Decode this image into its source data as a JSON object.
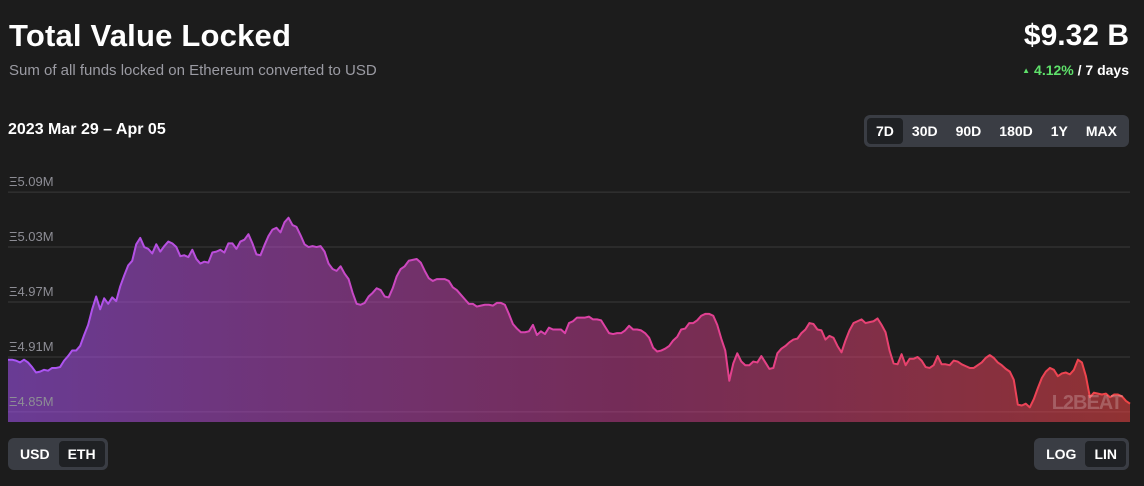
{
  "header": {
    "title": "Total Value Locked",
    "subtitle": "Sum of all funds locked on Ethereum converted to USD",
    "value": "$9.32 B",
    "change_pct": "4.12%",
    "change_period": "/ 7 days",
    "change_direction": "up"
  },
  "date_range": "2023 Mar 29 – Apr 05",
  "range_buttons": [
    {
      "label": "7D",
      "active": true
    },
    {
      "label": "30D",
      "active": false
    },
    {
      "label": "90D",
      "active": false
    },
    {
      "label": "180D",
      "active": false
    },
    {
      "label": "1Y",
      "active": false
    },
    {
      "label": "MAX",
      "active": false
    }
  ],
  "unit_buttons": [
    {
      "label": "USD",
      "active": false
    },
    {
      "label": "ETH",
      "active": true
    }
  ],
  "scale_buttons": [
    {
      "label": "LOG",
      "active": false
    },
    {
      "label": "LIN",
      "active": true
    }
  ],
  "watermark": "L2BEAT",
  "colors": {
    "background": "#1c1c1c",
    "line_start": "#a855f7",
    "line_mid": "#e040a0",
    "line_end": "#ef4444",
    "up": "#5ee06a",
    "grid": "#3a3a3a",
    "tick": "#8d8d95"
  },
  "chart_data": {
    "type": "area",
    "title": "",
    "xlabel": "",
    "ylabel": "",
    "y_tick_labels": [
      "Ξ5.09M",
      "Ξ5.03M",
      "Ξ4.97M",
      "Ξ4.91M",
      "Ξ4.85M"
    ],
    "y_ticks": [
      5.09,
      5.03,
      4.97,
      4.91,
      4.85
    ],
    "ylim": [
      4.839,
      5.101
    ],
    "grid": true,
    "series": [
      {
        "values": [
          4.907,
          4.907,
          4.906,
          4.904,
          4.907,
          4.904,
          4.899,
          4.893,
          4.894,
          4.896,
          4.895,
          4.898,
          4.898,
          4.899,
          4.906,
          4.911,
          4.917,
          4.917,
          4.922,
          4.934,
          4.945,
          4.962,
          4.976,
          4.962,
          4.974,
          4.968,
          4.975,
          4.971,
          4.987,
          4.999,
          5.01,
          5.015,
          5.033,
          5.04,
          5.03,
          5.028,
          5.023,
          5.033,
          5.025,
          5.031,
          5.036,
          5.034,
          5.03,
          5.02,
          5.021,
          5.019,
          5.027,
          5.017,
          5.012,
          5.014,
          5.013,
          5.024,
          5.025,
          5.027,
          5.024,
          5.034,
          5.034,
          5.028,
          5.036,
          5.038,
          5.044,
          5.034,
          5.022,
          5.021,
          5.032,
          5.042,
          5.049,
          5.051,
          5.046,
          5.057,
          5.062,
          5.054,
          5.052,
          5.043,
          5.033,
          5.03,
          5.031,
          5.03,
          5.031,
          5.025,
          5.012,
          5.006,
          5.004,
          5.009,
          5.001,
          4.995,
          4.98,
          4.968,
          4.967,
          4.969,
          4.976,
          4.98,
          4.985,
          4.983,
          4.976,
          4.975,
          4.985,
          4.998,
          5.006,
          5.009,
          5.015,
          5.016,
          5.017,
          5.013,
          5.004,
          4.996,
          4.993,
          4.995,
          4.995,
          4.995,
          4.993,
          4.986,
          4.983,
          4.978,
          4.973,
          4.968,
          4.968,
          4.965,
          4.966,
          4.967,
          4.967,
          4.966,
          4.969,
          4.969,
          4.967,
          4.957,
          4.946,
          4.941,
          4.937,
          4.937,
          4.938,
          4.945,
          4.934,
          4.938,
          4.935,
          4.942,
          4.94,
          4.94,
          4.94,
          4.936,
          4.947,
          4.949,
          4.953,
          4.953,
          4.953,
          4.954,
          4.951,
          4.951,
          4.95,
          4.943,
          4.936,
          4.935,
          4.936,
          4.936,
          4.939,
          4.944,
          4.94,
          4.94,
          4.939,
          4.936,
          4.931,
          4.92,
          4.916,
          4.917,
          4.919,
          4.922,
          4.928,
          4.932,
          4.94,
          4.941,
          4.947,
          4.947,
          4.95,
          4.955,
          4.957,
          4.957,
          4.955,
          4.945,
          4.93,
          4.917,
          4.884,
          4.903,
          4.914,
          4.905,
          4.901,
          4.901,
          4.905,
          4.904,
          4.911,
          4.904,
          4.897,
          4.898,
          4.914,
          4.919,
          4.922,
          4.926,
          4.929,
          4.93,
          4.936,
          4.94,
          4.947,
          4.946,
          4.94,
          4.939,
          4.929,
          4.933,
          4.931,
          4.922,
          4.915,
          4.928,
          4.939,
          4.947,
          4.949,
          4.951,
          4.947,
          4.948,
          4.949,
          4.952,
          4.945,
          4.937,
          4.917,
          4.903,
          4.902,
          4.913,
          4.901,
          4.908,
          4.908,
          4.91,
          4.906,
          4.899,
          4.898,
          4.901,
          4.911,
          4.902,
          4.902,
          4.901,
          4.906,
          4.905,
          4.902,
          4.9,
          4.898,
          4.898,
          4.901,
          4.904,
          4.909,
          4.912,
          4.909,
          4.904,
          4.901,
          4.897,
          4.894,
          4.885,
          4.858,
          4.857,
          4.859,
          4.855,
          4.864,
          4.876,
          4.887,
          4.894,
          4.898,
          4.896,
          4.889,
          4.892,
          4.893,
          4.891,
          4.896,
          4.907,
          4.904,
          4.889,
          4.866,
          4.871,
          4.87,
          4.869,
          4.87,
          4.866,
          4.869,
          4.869,
          4.867,
          4.862,
          4.859
        ]
      }
    ]
  }
}
